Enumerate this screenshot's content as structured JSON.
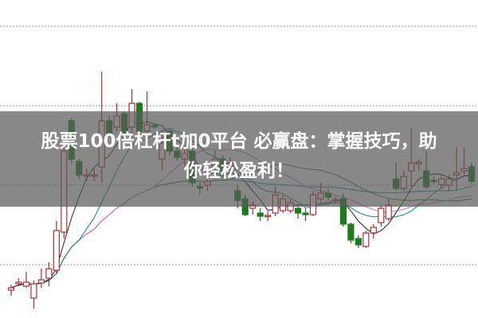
{
  "title": {
    "line1": "股票100倍杠杆t加0平台 必赢盘：掌握技巧，助",
    "line2": "你轻松盈利！"
  },
  "chart_data": {
    "type": "candlestick",
    "title": "",
    "xlabel": "",
    "ylabel": "",
    "ylim": [
      0,
      40
    ],
    "grid": "horizontal dotted",
    "colors": {
      "up": "#b03030",
      "down": "#1e7a1e",
      "ma5": "#333333",
      "ma10": "#2a8a8a",
      "ma20": "#c88ac8",
      "ma30": "#4a7a3a",
      "ma60": "#2a90a8"
    },
    "moving_averages": [
      5,
      10,
      20,
      30,
      60
    ],
    "candles_ohlc": [
      [
        3.5,
        4.2,
        2.8,
        3.8
      ],
      [
        4.3,
        5.0,
        4.0,
        4.5
      ],
      [
        4.0,
        5.8,
        3.8,
        4.5
      ],
      [
        2.5,
        4.7,
        1.2,
        4.3
      ],
      [
        4.4,
        6.2,
        3.8,
        4.8
      ],
      [
        5.0,
        7.0,
        4.0,
        6.2
      ],
      [
        6.0,
        12.2,
        5.5,
        11.0
      ],
      [
        10.8,
        22.0,
        10.0,
        21.0
      ],
      [
        24.8,
        25.2,
        19.5,
        20.0
      ],
      [
        19.7,
        20.0,
        17.5,
        18.0
      ],
      [
        18.0,
        18.8,
        17.2,
        18.0
      ],
      [
        18.0,
        18.8,
        17.2,
        18.0
      ],
      [
        19.0,
        31.0,
        17.0,
        24.8
      ],
      [
        24.8,
        25.5,
        22.8,
        23.2
      ],
      [
        24.0,
        27.0,
        23.5,
        25.4
      ],
      [
        25.7,
        26.0,
        23.0,
        23.2
      ],
      [
        24.0,
        28.8,
        22.5,
        27.0
      ],
      [
        27.0,
        27.2,
        23.2,
        23.5
      ],
      [
        23.5,
        28.5,
        22.5,
        24.3
      ],
      [
        24.2,
        24.5,
        23.8,
        24.1
      ],
      [
        20.0,
        23.5,
        18.5,
        22.0
      ],
      [
        23.5,
        24.0,
        20.5,
        21.0
      ],
      [
        21.0,
        21.5,
        19.8,
        20.2
      ],
      [
        20.0,
        21.2,
        19.2,
        20.7
      ],
      [
        21.0,
        21.5,
        16.5,
        17.0
      ],
      [
        16.5,
        17.0,
        15.5,
        16.4
      ],
      [
        16.7,
        17.5,
        16.0,
        17.2
      ],
      [
        18.5,
        21.0,
        17.5,
        20.0
      ],
      [
        20.0,
        20.5,
        17.8,
        18.5
      ],
      [
        19.0,
        20.2,
        18.5,
        19.5
      ],
      [
        16.0,
        16.8,
        13.8,
        14.8
      ],
      [
        15.0,
        15.5,
        12.8,
        13.0
      ],
      [
        13.8,
        14.7,
        13.0,
        14.2
      ],
      [
        13.2,
        13.8,
        12.2,
        12.8
      ],
      [
        12.8,
        13.4,
        12.2,
        12.9
      ],
      [
        13.2,
        16.5,
        12.8,
        15.5
      ],
      [
        13.5,
        15.5,
        13.2,
        15.0
      ],
      [
        13.5,
        15.0,
        13.2,
        14.5
      ],
      [
        13.8,
        14.2,
        12.5,
        13.2
      ],
      [
        13.2,
        13.8,
        12.2,
        13.0
      ],
      [
        13.0,
        16.0,
        12.8,
        15.5
      ],
      [
        15.0,
        17.0,
        14.5,
        15.7
      ],
      [
        15.7,
        16.2,
        14.8,
        15.2
      ],
      [
        14.8,
        15.2,
        14.4,
        14.9
      ],
      [
        15.0,
        15.7,
        11.5,
        11.8
      ],
      [
        11.8,
        12.0,
        9.4,
        9.8
      ],
      [
        10.0,
        10.4,
        8.8,
        9.2
      ],
      [
        9.0,
        11.0,
        8.8,
        10.7
      ],
      [
        10.7,
        11.8,
        10.0,
        11.4
      ],
      [
        12.0,
        14.2,
        11.5,
        13.8
      ],
      [
        12.5,
        15.0,
        12.2,
        14.2
      ],
      [
        17.5,
        19.5,
        16.0,
        16.3
      ],
      [
        16.3,
        18.5,
        16.0,
        17.8
      ],
      [
        18.5,
        24.0,
        16.5,
        19.5
      ],
      [
        19.4,
        20.0,
        18.5,
        19.6
      ],
      [
        18.5,
        21.0,
        16.2,
        16.5
      ],
      [
        17.3,
        17.8,
        16.8,
        17.2
      ],
      [
        16.8,
        18.0,
        16.2,
        17.5
      ],
      [
        16.7,
        18.0,
        16.0,
        17.5
      ],
      [
        18.0,
        21.5,
        16.0,
        18.3
      ],
      [
        18.5,
        21.5,
        18.0,
        18.8
      ],
      [
        19.0,
        19.5,
        16.8,
        17.2
      ]
    ]
  }
}
